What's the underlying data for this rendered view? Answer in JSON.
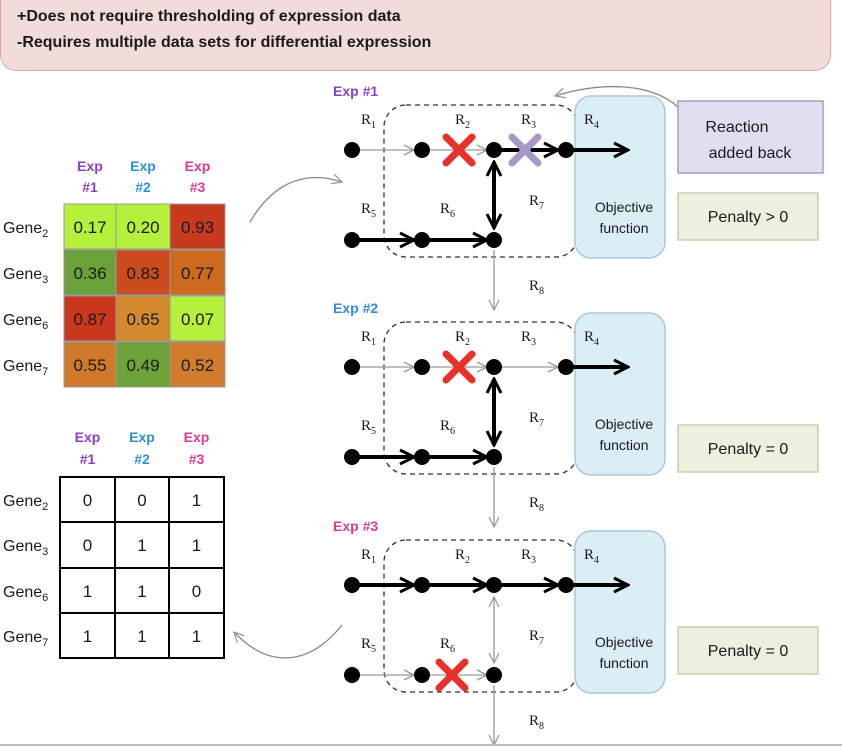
{
  "banner": {
    "line1": "+Does not require thresholding of expression data",
    "line2": "-Requires multiple data sets for differential expression"
  },
  "colors": {
    "exp1": "#8a3fd0",
    "exp2": "#2e8fd6",
    "exp3": "#e0389a",
    "knockout": "#e8312a",
    "added_back": "#a898c8",
    "objective_fill": "#dbeef5",
    "penalty_fill": "#ebf1de",
    "reaction_box_fill": "#e4dcef"
  },
  "expression_table": {
    "headers": [
      {
        "top": "Exp",
        "bottom": "#1"
      },
      {
        "top": "Exp",
        "bottom": "#2"
      },
      {
        "top": "Exp",
        "bottom": "#3"
      }
    ],
    "rows": [
      {
        "gene": "Gene",
        "sub": "2",
        "values": [
          "0.17",
          "0.20",
          "0.93"
        ],
        "colors": [
          "#b5f03c",
          "#b5f03c",
          "#c9391e"
        ]
      },
      {
        "gene": "Gene",
        "sub": "3",
        "values": [
          "0.36",
          "0.83",
          "0.77"
        ],
        "colors": [
          "#6aa13a",
          "#cb4a1e",
          "#cc6a20"
        ]
      },
      {
        "gene": "Gene",
        "sub": "6",
        "values": [
          "0.87",
          "0.65",
          "0.07"
        ],
        "colors": [
          "#c9371c",
          "#d4892f",
          "#b5f03c"
        ]
      },
      {
        "gene": "Gene",
        "sub": "7",
        "values": [
          "0.55",
          "0.49",
          "0.52"
        ],
        "colors": [
          "#cf7a2a",
          "#6da33a",
          "#d07c2c"
        ]
      }
    ]
  },
  "binary_table": {
    "headers": [
      {
        "top": "Exp",
        "bottom": "#1"
      },
      {
        "top": "Exp",
        "bottom": "#2"
      },
      {
        "top": "Exp",
        "bottom": "#3"
      }
    ],
    "rows": [
      {
        "gene": "Gene",
        "sub": "2",
        "values": [
          "0",
          "0",
          "1"
        ]
      },
      {
        "gene": "Gene",
        "sub": "3",
        "values": [
          "0",
          "1",
          "1"
        ]
      },
      {
        "gene": "Gene",
        "sub": "6",
        "values": [
          "1",
          "1",
          "0"
        ]
      },
      {
        "gene": "Gene",
        "sub": "7",
        "values": [
          "1",
          "1",
          "1"
        ]
      }
    ]
  },
  "network": {
    "reaction_letter": "R",
    "reaction_ids": [
      "1",
      "2",
      "3",
      "4",
      "5",
      "6",
      "7",
      "8"
    ],
    "objective_line1": "Objective",
    "objective_line2": "function"
  },
  "panels": [
    {
      "label": "Exp #1",
      "penalty": "Penalty > 0",
      "knockouts": [
        "R2"
      ],
      "added_back": [
        "R3"
      ]
    },
    {
      "label": "Exp #2",
      "penalty": "Penalty = 0",
      "knockouts": [
        "R2"
      ],
      "added_back": []
    },
    {
      "label": "Exp #3",
      "penalty": "Penalty = 0",
      "knockouts": [
        "R6"
      ],
      "added_back": []
    }
  ],
  "reaction_added_back": {
    "line1": "Reaction",
    "line2": "added back"
  }
}
